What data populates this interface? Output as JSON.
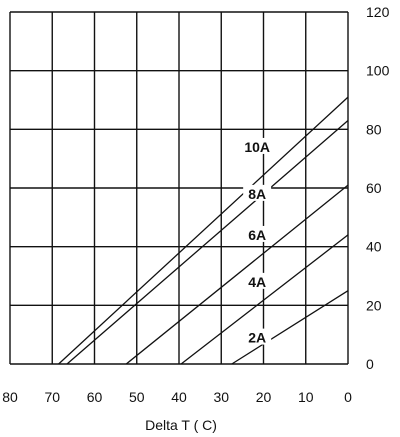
{
  "chart_data": {
    "type": "line",
    "xlabel": "Delta T ( C)",
    "ylabel": "",
    "xlim": [
      80,
      0
    ],
    "ylim": [
      0,
      120
    ],
    "x_ticks": [
      80,
      70,
      60,
      50,
      40,
      30,
      20,
      10,
      0
    ],
    "y_ticks": [
      0,
      20,
      40,
      60,
      80,
      100,
      120
    ],
    "x_tick_labels": [
      "80",
      "70",
      "60",
      "50",
      "40",
      "30",
      "20",
      "10",
      "0"
    ],
    "y_tick_labels": [
      "0",
      "20",
      "40",
      "60",
      "80",
      "100",
      "120"
    ],
    "grid": true,
    "y_axis_side": "right",
    "line_color": "#111111",
    "series": [
      {
        "name": "10A",
        "x": [
          68.5,
          0
        ],
        "y": [
          0,
          91
        ]
      },
      {
        "name": "8A",
        "x": [
          66.5,
          0
        ],
        "y": [
          0,
          83
        ]
      },
      {
        "name": "6A",
        "x": [
          52.5,
          0
        ],
        "y": [
          0,
          61
        ]
      },
      {
        "name": "4A",
        "x": [
          39.5,
          0
        ],
        "y": [
          0,
          44
        ]
      },
      {
        "name": "2A",
        "x": [
          27.5,
          0
        ],
        "y": [
          0,
          25
        ]
      }
    ],
    "series_label_positions": [
      {
        "x": 21.5,
        "y": 74
      },
      {
        "x": 21.5,
        "y": 58
      },
      {
        "x": 21.5,
        "y": 44
      },
      {
        "x": 21.5,
        "y": 28
      },
      {
        "x": 21.5,
        "y": 9
      }
    ]
  }
}
